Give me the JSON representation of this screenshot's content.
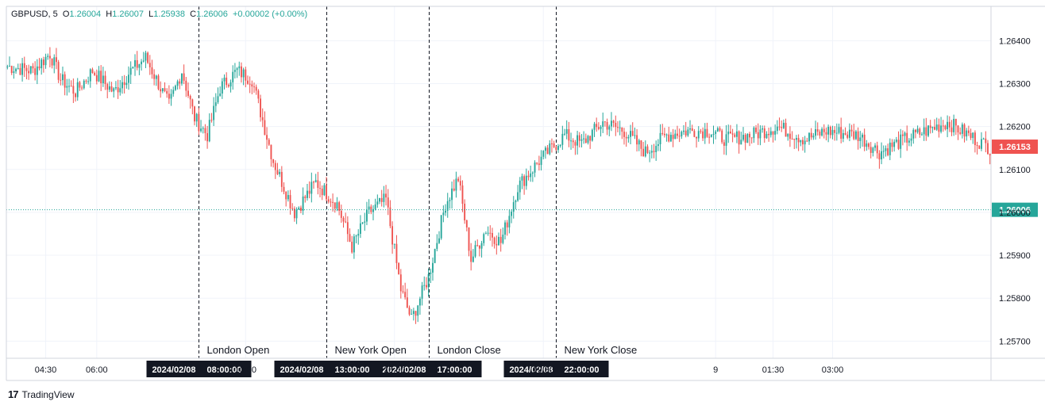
{
  "header": {
    "symbol": "GBPUSD",
    "interval": "5",
    "open_label": "O",
    "open": "1.26004",
    "high_label": "H",
    "high": "1.26007",
    "low_label": "L",
    "low": "1.25938",
    "close_label": "C",
    "close": "1.26006",
    "change": "+0.00002 (+0.00%)"
  },
  "price_axis": {
    "ticks": [
      "1.26400",
      "1.26300",
      "1.26200",
      "1.26100",
      "1.26000",
      "1.25900",
      "1.25800",
      "1.25700"
    ],
    "last_price": "1.26153",
    "last_price_color": "#ef5350",
    "crosshair_price": "1.26006",
    "crosshair_color": "#26a69a"
  },
  "time_axis": {
    "ticks": [
      "04:30",
      "06:00",
      "10:30",
      "15:00",
      "19:30",
      "9",
      "01:30",
      "03:00"
    ]
  },
  "sessions": [
    {
      "label": "London Open",
      "date": "2024/02/08",
      "time": "08:00:00"
    },
    {
      "label": "New York Open",
      "date": "2024/02/08",
      "time": "13:00:00"
    },
    {
      "label": "London Close",
      "date": "2024/02/08",
      "time": "17:00:00"
    },
    {
      "label": "New York Close",
      "date": "2024/02/08",
      "time": "22:00:00"
    }
  ],
  "branding": {
    "logo_mark": "17",
    "name": "TradingView"
  },
  "colors": {
    "up": "#26a69a",
    "down": "#ef5350",
    "grid": "#f0f3fa",
    "axis_text": "#131722"
  },
  "chart_data": {
    "type": "candlestick",
    "ylim": [
      1.2566,
      1.2648
    ],
    "anchors": [
      [
        0,
        1.2634
      ],
      [
        12,
        1.2633
      ],
      [
        20,
        1.2637
      ],
      [
        25,
        1.2631
      ],
      [
        32,
        1.2628
      ],
      [
        40,
        1.2633
      ],
      [
        50,
        1.2628
      ],
      [
        58,
        1.2633
      ],
      [
        65,
        1.2636
      ],
      [
        72,
        1.2629
      ],
      [
        76,
        1.2625
      ],
      [
        82,
        1.2633
      ],
      [
        88,
        1.2622
      ],
      [
        94,
        1.2618
      ],
      [
        100,
        1.2629
      ],
      [
        108,
        1.2633
      ],
      [
        115,
        1.2631
      ],
      [
        125,
        1.2612
      ],
      [
        135,
        1.26
      ],
      [
        145,
        1.2607
      ],
      [
        155,
        1.2602
      ],
      [
        162,
        1.2592
      ],
      [
        170,
        1.26
      ],
      [
        178,
        1.2603
      ],
      [
        185,
        1.2582
      ],
      [
        190,
        1.2575
      ],
      [
        198,
        1.2585
      ],
      [
        206,
        1.2602
      ],
      [
        212,
        1.2608
      ],
      [
        218,
        1.2589
      ],
      [
        225,
        1.2596
      ],
      [
        232,
        1.2593
      ],
      [
        240,
        1.2606
      ],
      [
        250,
        1.2612
      ],
      [
        262,
        1.2618
      ],
      [
        270,
        1.2616
      ],
      [
        280,
        1.2621
      ],
      [
        290,
        1.2619
      ],
      [
        300,
        1.2614
      ],
      [
        310,
        1.2618
      ],
      [
        320,
        1.2619
      ],
      [
        330,
        1.2619
      ],
      [
        338,
        1.2617
      ],
      [
        350,
        1.2618
      ],
      [
        362,
        1.262
      ],
      [
        375,
        1.2617
      ],
      [
        385,
        1.2619
      ],
      [
        400,
        1.2618
      ],
      [
        410,
        1.2614
      ],
      [
        422,
        1.2617
      ],
      [
        432,
        1.2619
      ],
      [
        442,
        1.2621
      ],
      [
        452,
        1.2618
      ],
      [
        462,
        1.2615
      ]
    ],
    "bars": 463,
    "session_bars": [
      90,
      150,
      198,
      258
    ]
  }
}
